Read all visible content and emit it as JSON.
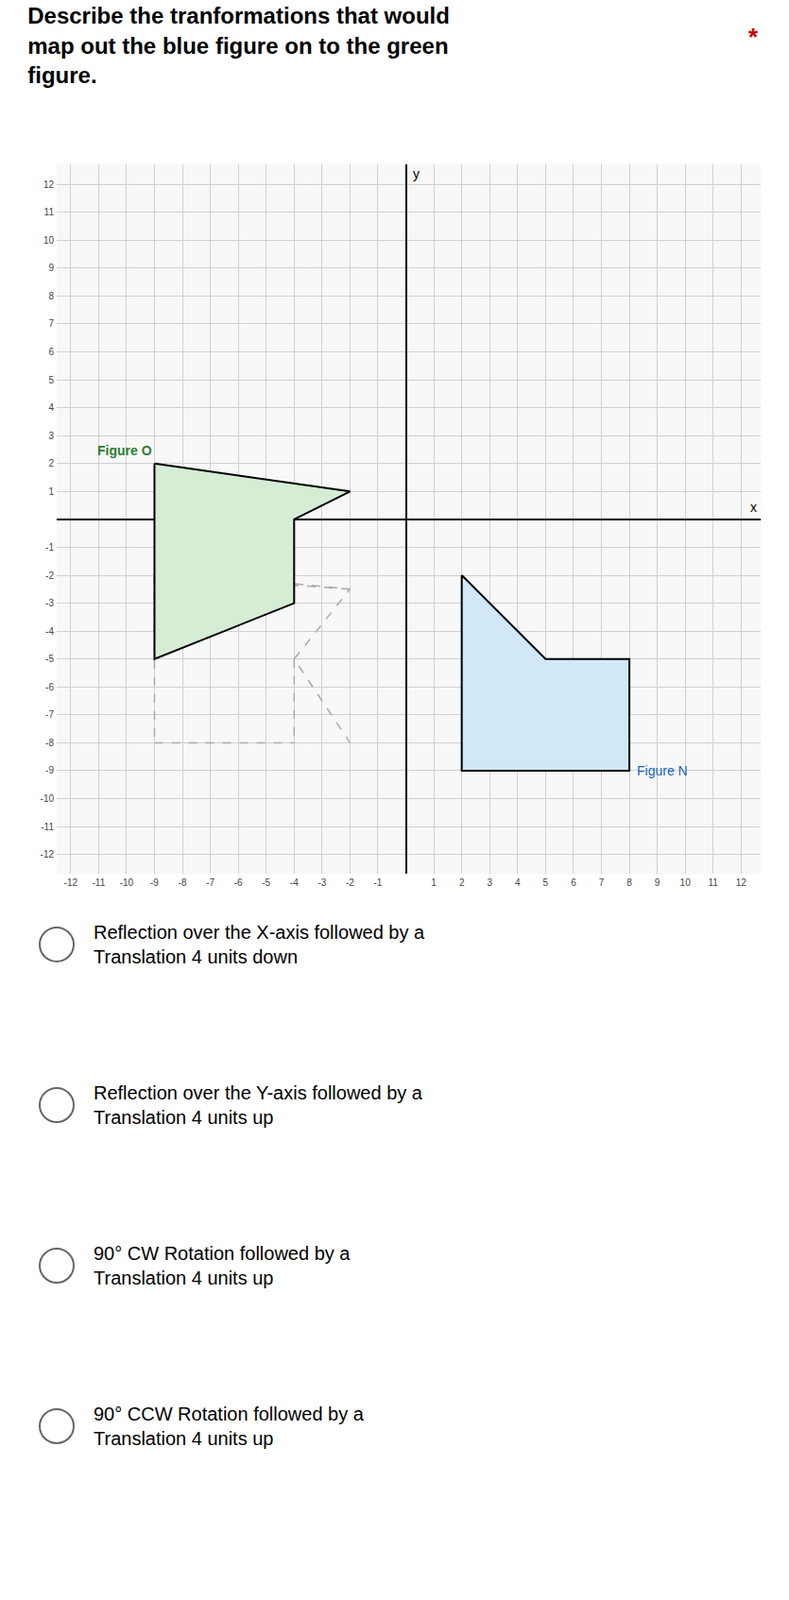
{
  "chart_data": {
    "type": "polygon",
    "title": [
      "Describe the tranformations that would",
      "map out the blue figure on to the green",
      "figure."
    ],
    "annotations": [
      {
        "text": "*",
        "color": "#cc0000"
      }
    ],
    "xlabel": "x",
    "ylabel": "y",
    "xlim": [
      -12.5,
      12.7
    ],
    "ylim": [
      -12.7,
      12.7
    ],
    "xticks": [
      -12,
      -11,
      -10,
      -9,
      -8,
      -7,
      -6,
      -5,
      -4,
      -3,
      -2,
      -1,
      1,
      2,
      3,
      4,
      5,
      6,
      7,
      8,
      9,
      10,
      11,
      12
    ],
    "yticks": [
      -12,
      -11,
      -10,
      -9,
      -8,
      -7,
      -6,
      -5,
      -4,
      -3,
      -2,
      -1,
      1,
      2,
      3,
      4,
      5,
      6,
      7,
      8,
      9,
      10,
      11,
      12
    ],
    "grid": true,
    "grid_color": "#d0d0d0",
    "axis_color": "#000000",
    "series": [
      {
        "name": "Figure O",
        "type": "polygon",
        "color": "#d4edd4",
        "edge_color": "#000000",
        "label_color": "#2e7d32",
        "x": [
          -9,
          -2,
          -4,
          -4,
          -9
        ],
        "y": [
          2,
          1,
          0,
          -3,
          -5
        ]
      },
      {
        "name": "Figure N",
        "type": "polygon",
        "color": "#d0e8f8",
        "edge_color": "#000000",
        "label_color": "#1565c0",
        "x": [
          2,
          5,
          8,
          8,
          2
        ],
        "y": [
          -2,
          -5,
          -5,
          -9,
          -9
        ]
      },
      {
        "type": "line",
        "line_style": "dashed",
        "color": "#aaaaaa",
        "x": [
          -7,
          -2,
          -4,
          -2,
          null,
          -9,
          -2,
          null,
          -4,
          -4,
          null,
          -9,
          -9,
          null,
          -9,
          -4
        ],
        "y": [
          -2,
          -2.5,
          -5,
          -8,
          null,
          -2,
          -2.5,
          null,
          -5,
          -8,
          null,
          -2,
          -8,
          null,
          -8,
          -8
        ]
      }
    ],
    "options": [
      [
        "Reflection over the X-axis followed by a",
        "Translation 4 units down"
      ],
      [
        "Reflection over the Y-axis followed by a",
        "Translation 4 units up"
      ],
      [
        "90° CW Rotation followed by a",
        "Translation 4 units up"
      ],
      [
        "90° CCW Rotation followed by a",
        "Translation 4 units up"
      ]
    ]
  }
}
